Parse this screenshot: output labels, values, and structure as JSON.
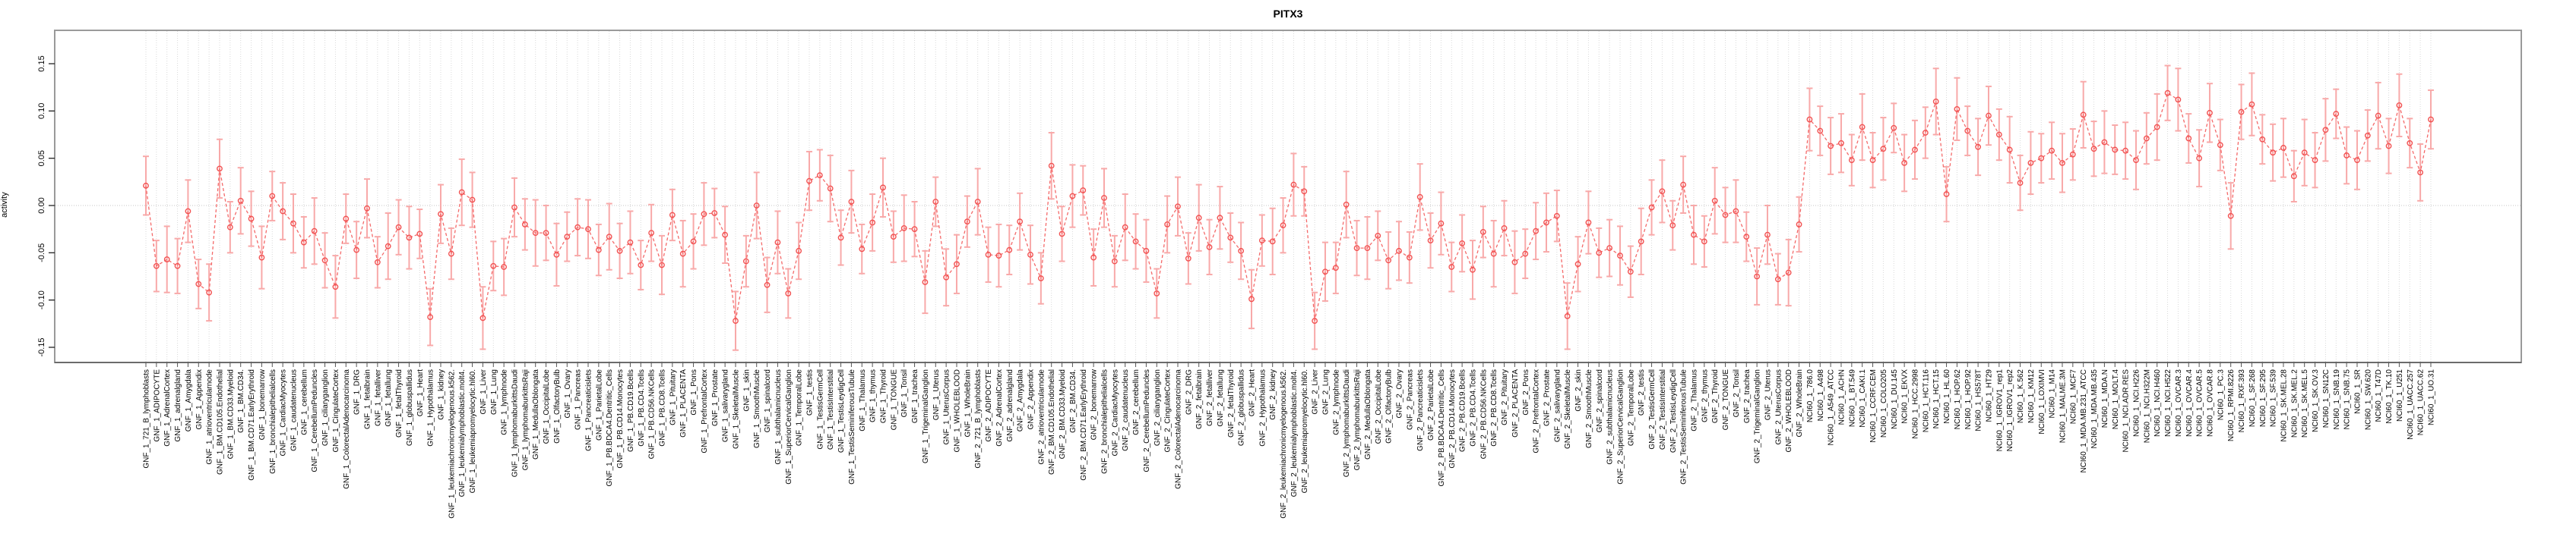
{
  "chart_data": {
    "type": "line",
    "title": "PITX3",
    "ylabel": "activity",
    "xlabel": "",
    "ylim": [
      -0.166,
      0.185
    ],
    "yticks": [
      -0.15,
      -0.1,
      -0.05,
      0.0,
      0.05,
      0.1,
      0.15
    ],
    "ytick_labels": [
      "-0.15",
      "-0.10",
      "-0.05",
      "0.00",
      "0.05",
      "0.10",
      "0.15"
    ],
    "grid": "vertical-dotted-per-sample, dotted zero line",
    "legend": "none",
    "marker": "open-circle",
    "line_style": "dashed",
    "error_bars": true,
    "colors": {
      "point": "#f25252",
      "line": "#f46a6a",
      "error_bar": "#f8a9a9",
      "gridline": "#d9d9d9",
      "zero_line": "#c6c6c6",
      "border": "#9a9a9a",
      "axis_dark": "#3c3c3c",
      "axis_text": "#000000"
    },
    "categories": [
      "GNF_1_721_B_lymphoblasts",
      "GNF_1_ADIPOCYTE",
      "GNF_1_AdrenalCortex",
      "GNF_1_adrenalgland",
      "GNF_1_Amygdala",
      "GNF_1_Appendix",
      "GNF_1_atrioventricularnode",
      "GNF_1_BM.CD105.Endothelial",
      "GNF_1_BM.CD33.Myeloid",
      "GNF_1_BM.CD34.",
      "GNF_1_BM.CD71.EarlyErythroid",
      "GNF_1_bonemarrow",
      "GNF_1_bronchialepithelialcells",
      "GNF_1_CardiacMyocytes",
      "GNF_1_caudatenucleus",
      "GNF_1_cerebellum",
      "GNF_1_CerebellumPeduncles",
      "GNF_1_ciliaryganglion",
      "GNF_1_CingulateCortex",
      "GNF_1_ColorectalAdenocarcinoma",
      "GNF_1_DRG",
      "GNF_1_fetalbrain",
      "GNF_1_fetalliver",
      "GNF_1_fetallung",
      "GNF_1_fetalThyroid",
      "GNF_1_globuspallidus",
      "GNF_1_Heart",
      "GNF_1_Hypothalamus",
      "GNF_1_kidney",
      "GNF_1_leukemiachronicmyelogenous.k562.",
      "GNF_1_leukemialymphoblastic.molt4.",
      "GNF_1_leukemiapromyelocytic.hl60.",
      "GNF_1_Liver",
      "GNF_1_Lung",
      "GNF_1_lymphnode",
      "GNF_1_lymphomaburkittsDaudi",
      "GNF_1_lymphomaburkittsRaji",
      "GNF_1_MedullaOblongata",
      "GNF_1_OccipitalLobe",
      "GNF_1_OlfactoryBulb",
      "GNF_1_Ovary",
      "GNF_1_Pancreas",
      "GNF_1_Pancreaticislets",
      "GNF_1_ParietalLobe",
      "GNF_1_PB.BDCA4.Dentritic_Cells",
      "GNF_1_PB.CD14.Monocytes",
      "GNF_1_PB.CD19.Bcells",
      "GNF_1_PB.CD4.Tcells",
      "GNF_1_PB.CD56.NKCells",
      "GNF_1_PB.CD8.Tcells",
      "GNF_1_Pituitary",
      "GNF_1_PLACENTA",
      "GNF_1_Pons",
      "GNF_1_PrefrontalCortex",
      "GNF_1_Prostate",
      "GNF_1_salivarygland",
      "GNF_1_SkeletalMuscle",
      "GNF_1_skin",
      "GNF_1_SmoothMuscle",
      "GNF_1_spinalcord",
      "GNF_1_subthalamicnucleus",
      "GNF_1_SuperiorCervicalGanglion",
      "GNF_1_TemporalLobe",
      "GNF_1_testis",
      "GNF_1_TestisGermCell",
      "GNF_1_TestisInterstitial",
      "GNF_1_TestisLeydigCell",
      "GNF_1_TestisSeminiferousTubule",
      "GNF_1_Thalamus",
      "GNF_1_thymus",
      "GNF_1_Thyroid",
      "GNF_1_TONGUE",
      "GNF_1_Tonsil",
      "GNF_1_trachea",
      "GNF_1_TrigeminalGanglion",
      "GNF_1_Uterus",
      "GNF_1_UterusCorpus",
      "GNF_1_WHOLEBLOOD",
      "GNF_1_WholeBrain",
      "GNF_2_721_B_lymphoblasts",
      "GNF_2_ADIPOCYTE",
      "GNF_2_AdrenalCortex",
      "GNF_2_adrenalgland",
      "GNF_2_Amygdala",
      "GNF_2_Appendix",
      "GNF_2_atrioventricularnode",
      "GNF_2_BM.CD105.Endothelial",
      "GNF_2_BM.CD33.Myeloid",
      "GNF_2_BM.CD34.",
      "GNF_2_BM.CD71.EarlyErythroid",
      "GNF_2_bonemarrow",
      "GNF_2_bronchialepithelialcells",
      "GNF_2_CardiacMyocytes",
      "GNF_2_caudatenucleus",
      "GNF_2_cerebellum",
      "GNF_2_CerebellumPeduncles",
      "GNF_2_ciliaryganglion",
      "GNF_2_CingulateCortex",
      "GNF_2_ColorectalAdenocarcinoma",
      "GNF_2_DRG",
      "GNF_2_fetalbrain",
      "GNF_2_fetalliver",
      "GNF_2_fetallung",
      "GNF_2_fetalThyroid",
      "GNF_2_globuspallidus",
      "GNF_2_Heart",
      "GNF_2_Hypothalamus",
      "GNF_2_kidney",
      "GNF_2_leukemiachronicmyelogenous.k562.",
      "GNF_2_leukemialymphoblastic.molt4.",
      "GNF_2_leukemiapromyelocytic.hl60.",
      "GNF_2_Liver",
      "GNF_2_Lung",
      "GNF_2_lymphnode",
      "GNF_2_lymphomaburkittsDaudi",
      "GNF_2_lymphomaburkittsRaji",
      "GNF_2_MedullaOblongata",
      "GNF_2_OccipitalLobe",
      "GNF_2_OlfactoryBulb",
      "GNF_2_Ovary",
      "GNF_2_Pancreas",
      "GNF_2_Pancreaticislets",
      "GNF_2_ParietalLobe",
      "GNF_2_PB.BDCA4.Dentritic_Cells",
      "GNF_2_PB.CD14.Monocytes",
      "GNF_2_PB.CD19.Bcells",
      "GNF_2_PB.CD4.Tcells",
      "GNF_2_PB.CD56.NKCells",
      "GNF_2_PB.CD8.Tcells",
      "GNF_2_Pituitary",
      "GNF_2_PLACENTA",
      "GNF_2_Pons",
      "GNF_2_PrefrontalCortex",
      "GNF_2_Prostate",
      "GNF_2_salivarygland",
      "GNF_2_SkeletalMuscle",
      "GNF_2_skin",
      "GNF_2_SmoothMuscle",
      "GNF_2_spinalcord",
      "GNF_2_subthalamicnucleus",
      "GNF_2_SuperiorCervicalGanglion",
      "GNF_2_TemporalLobe",
      "GNF_2_testis",
      "GNF_2_TestisGermCell",
      "GNF_2_TestisInterstitial",
      "GNF_2_TestisLeydigCell",
      "GNF_2_TestisSeminiferousTubule",
      "GNF_2_Thalamus",
      "GNF_2_thymus",
      "GNF_2_Thyroid",
      "GNF_2_TONGUE",
      "GNF_2_Tonsil",
      "GNF_2_trachea",
      "GNF_2_TrigeminalGanglion",
      "GNF_2_Uterus",
      "GNF_2_UterusCorpus",
      "GNF_2_WHOLEBLOOD",
      "GNF_2_WholeBrain",
      "NCI60_1_786.0",
      "NCI60_1_A498",
      "NCI60_1_A549_ATCC",
      "NCI60_1_ACHN",
      "NCI60_1_BT.549",
      "NCI60_1_CAKI.1",
      "NCI60_1_CCRF.CEM",
      "NCI60_1_COLO205",
      "NCI60_1_DU.145",
      "NCI60_1_EKVX",
      "NCI60_1_HCC.2998",
      "NCI60_1_HCT.116",
      "NCI60_1_HCT.15",
      "NCI60_1_HL.60",
      "NCI60_1_HOP.62",
      "NCI60_1_HOP.92",
      "NCI60_1_HS578T",
      "NCI60_1_HT29",
      "NCI60_1_IGROV1_rep1",
      "NCI60_1_IGROV1_rep2",
      "NCI60_1_K.562",
      "NCI60_1_KM12",
      "NCI60_1_LOXIMVI",
      "NCI60_1_M14",
      "NCI60_1_MALME.3M",
      "NCI60_1_MCF7",
      "NCI60_1_MDA.MB.231_ATCC",
      "NCI60_1_MDA.MB.435",
      "NCI60_1_MDA.N",
      "NCI60_1_MOLT.4",
      "NCI60_1_NCI.ADR.RES",
      "NCI60_1_NCI.H226",
      "NCI60_1_NCI.H322M",
      "NCI60_1_NCI.H460",
      "NCI60_1_NCI.H522",
      "NCI60_1_OVCAR.3",
      "NCI60_1_OVCAR.4",
      "NCI60_1_OVCAR.5",
      "NCI60_1_OVCAR.8",
      "NCI60_1_PC.3",
      "NCI60_1_RPMI.8226",
      "NCI60_1_RXF.393",
      "NCI60_1_SF.268",
      "NCI60_1_SF.295",
      "NCI60_1_SF.539",
      "NCI60_1_SK.MEL.28",
      "NCI60_1_SK.MEL.2",
      "NCI60_1_SK.MEL.5",
      "NCI60_1_SK.OV.3",
      "NCI60_1_SN12C",
      "NCI60_1_SNB.19",
      "NCI60_1_SNB.75",
      "NCI60_1_SR",
      "NCI60_1_SW.620",
      "NCI60_1_T47D",
      "NCI60_1_TK.10",
      "NCI60_1_U251",
      "NCI60_1_UACC.257",
      "NCI60_1_UACC.62",
      "NCI60_1_UO.31"
    ],
    "values": [
      0.021,
      -0.064,
      -0.057,
      -0.064,
      -0.006,
      -0.083,
      -0.092,
      0.039,
      -0.023,
      0.005,
      -0.014,
      -0.055,
      0.01,
      -0.006,
      -0.019,
      -0.039,
      -0.027,
      -0.058,
      -0.086,
      -0.014,
      -0.047,
      -0.003,
      -0.06,
      -0.043,
      -0.023,
      -0.034,
      -0.03,
      -0.118,
      -0.009,
      -0.051,
      0.014,
      0.006,
      -0.119,
      -0.064,
      -0.065,
      -0.002,
      -0.02,
      -0.029,
      -0.029,
      -0.052,
      -0.033,
      -0.023,
      -0.025,
      -0.047,
      -0.033,
      -0.048,
      -0.039,
      -0.063,
      -0.029,
      -0.063,
      -0.01,
      -0.051,
      -0.038,
      -0.009,
      -0.008,
      -0.031,
      -0.122,
      -0.059,
      0.0,
      -0.084,
      -0.039,
      -0.093,
      -0.048,
      0.026,
      0.032,
      0.018,
      -0.034,
      0.004,
      -0.046,
      -0.018,
      0.019,
      -0.033,
      -0.024,
      -0.025,
      -0.081,
      0.004,
      -0.076,
      -0.062,
      -0.017,
      0.004,
      -0.052,
      -0.053,
      -0.047,
      -0.017,
      -0.052,
      -0.077,
      0.042,
      -0.03,
      0.01,
      0.016,
      -0.055,
      0.008,
      -0.059,
      -0.023,
      -0.038,
      -0.048,
      -0.093,
      -0.02,
      -0.001,
      -0.056,
      -0.013,
      -0.044,
      -0.013,
      -0.034,
      -0.048,
      -0.099,
      -0.037,
      -0.038,
      -0.021,
      0.022,
      0.015,
      -0.122,
      -0.07,
      -0.066,
      0.001,
      -0.045,
      -0.045,
      -0.032,
      -0.058,
      -0.048,
      -0.055,
      0.009,
      -0.037,
      -0.019,
      -0.065,
      -0.04,
      -0.068,
      -0.028,
      -0.051,
      -0.024,
      -0.06,
      -0.051,
      -0.027,
      -0.018,
      -0.011,
      -0.117,
      -0.062,
      -0.018,
      -0.05,
      -0.045,
      -0.053,
      -0.07,
      -0.038,
      -0.002,
      0.015,
      -0.021,
      0.022,
      -0.031,
      -0.038,
      0.005,
      -0.01,
      -0.006,
      -0.033,
      -0.075,
      -0.031,
      -0.078,
      -0.071,
      -0.02,
      0.091,
      0.079,
      0.063,
      0.066,
      0.048,
      0.083,
      0.048,
      0.06,
      0.082,
      0.045,
      0.059,
      0.077,
      0.11,
      0.012,
      0.102,
      0.079,
      0.062,
      0.095,
      0.075,
      0.059,
      0.024,
      0.045,
      0.05,
      0.058,
      0.045,
      0.054,
      0.096,
      0.06,
      0.067,
      0.059,
      0.058,
      0.048,
      0.071,
      0.083,
      0.119,
      0.112,
      0.071,
      0.05,
      0.098,
      0.064,
      -0.011,
      0.099,
      0.107,
      0.07,
      0.056,
      0.061,
      0.031,
      0.056,
      0.048,
      0.08,
      0.097,
      0.053,
      0.048,
      0.074,
      0.095,
      0.063,
      0.106,
      0.066,
      0.035,
      0.091
    ],
    "errors": [
      0.031,
      0.027,
      0.035,
      0.029,
      0.033,
      0.026,
      0.03,
      0.031,
      0.027,
      0.035,
      0.029,
      0.033,
      0.026,
      0.03,
      0.031,
      0.027,
      0.035,
      0.029,
      0.033,
      0.026,
      0.03,
      0.031,
      0.027,
      0.035,
      0.029,
      0.033,
      0.026,
      0.03,
      0.031,
      0.027,
      0.035,
      0.029,
      0.033,
      0.026,
      0.03,
      0.031,
      0.027,
      0.035,
      0.029,
      0.033,
      0.026,
      0.03,
      0.031,
      0.027,
      0.035,
      0.029,
      0.033,
      0.026,
      0.03,
      0.031,
      0.027,
      0.035,
      0.029,
      0.033,
      0.026,
      0.03,
      0.031,
      0.027,
      0.035,
      0.029,
      0.033,
      0.026,
      0.03,
      0.031,
      0.027,
      0.035,
      0.029,
      0.033,
      0.026,
      0.03,
      0.031,
      0.027,
      0.035,
      0.029,
      0.033,
      0.026,
      0.03,
      0.031,
      0.027,
      0.035,
      0.029,
      0.033,
      0.026,
      0.03,
      0.031,
      0.027,
      0.035,
      0.029,
      0.033,
      0.026,
      0.03,
      0.031,
      0.027,
      0.035,
      0.029,
      0.033,
      0.026,
      0.03,
      0.031,
      0.027,
      0.035,
      0.029,
      0.033,
      0.026,
      0.03,
      0.031,
      0.027,
      0.035,
      0.029,
      0.033,
      0.026,
      0.03,
      0.031,
      0.027,
      0.035,
      0.029,
      0.033,
      0.026,
      0.03,
      0.031,
      0.027,
      0.035,
      0.029,
      0.033,
      0.026,
      0.03,
      0.031,
      0.027,
      0.035,
      0.029,
      0.033,
      0.026,
      0.03,
      0.031,
      0.027,
      0.035,
      0.029,
      0.033,
      0.026,
      0.03,
      0.031,
      0.027,
      0.035,
      0.029,
      0.033,
      0.026,
      0.03,
      0.031,
      0.027,
      0.035,
      0.029,
      0.033,
      0.026,
      0.03,
      0.031,
      0.027,
      0.035,
      0.029,
      0.033,
      0.026,
      0.03,
      0.031,
      0.027,
      0.035,
      0.029,
      0.033,
      0.026,
      0.03,
      0.031,
      0.027,
      0.035,
      0.029,
      0.033,
      0.026,
      0.03,
      0.031,
      0.027,
      0.035,
      0.029,
      0.033,
      0.026,
      0.03,
      0.031,
      0.027,
      0.035,
      0.029,
      0.033,
      0.026,
      0.03,
      0.031,
      0.027,
      0.035,
      0.029,
      0.033,
      0.026,
      0.03,
      0.031,
      0.027,
      0.035,
      0.029,
      0.033,
      0.026,
      0.03,
      0.031,
      0.027,
      0.035,
      0.029,
      0.033,
      0.026,
      0.03,
      0.031,
      0.027,
      0.035,
      0.029,
      0.033,
      0.026,
      0.03,
      0.031
    ]
  }
}
